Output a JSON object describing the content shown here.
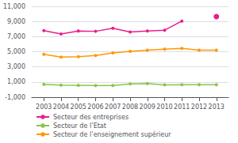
{
  "chart_data": {
    "type": "line",
    "x": [
      2003,
      2004,
      2005,
      2006,
      2007,
      2008,
      2009,
      2010,
      2011,
      2012,
      2013
    ],
    "series": [
      {
        "name": "Secteur des entreprises",
        "color": "#e91e8c",
        "values": [
          7800,
          7350,
          7750,
          7700,
          8100,
          7600,
          7750,
          7850,
          9050,
          null,
          9650
        ]
      },
      {
        "name": "Secteur de l’Etat",
        "color": "#8bc34a",
        "values": [
          700,
          590,
          560,
          530,
          530,
          750,
          800,
          630,
          640,
          640,
          650
        ]
      },
      {
        "name": "Secteur de l’enseignement supérieur",
        "color": "#ff9800",
        "values": [
          4650,
          4300,
          4350,
          4500,
          4850,
          5050,
          5200,
          5350,
          5450,
          5200,
          5200
        ]
      }
    ],
    "xlim": [
      2002.3,
      2013.7
    ],
    "xticks": [
      2003,
      2004,
      2005,
      2006,
      2007,
      2008,
      2009,
      2010,
      2011,
      2012,
      2013
    ],
    "ylim": [
      -1000,
      11000
    ],
    "yticks": [
      {
        "value": -1000,
        "label": "-1,000"
      },
      {
        "value": 1000,
        "label": "1,000"
      },
      {
        "value": 3000,
        "label": "3,000"
      },
      {
        "value": 5000,
        "label": "5,000"
      },
      {
        "value": 7000,
        "label": "7,000"
      },
      {
        "value": 9000,
        "label": "9,000"
      },
      {
        "value": 11000,
        "label": "11,000"
      }
    ],
    "grid": true,
    "legend": "bottom",
    "marker": "circle"
  }
}
